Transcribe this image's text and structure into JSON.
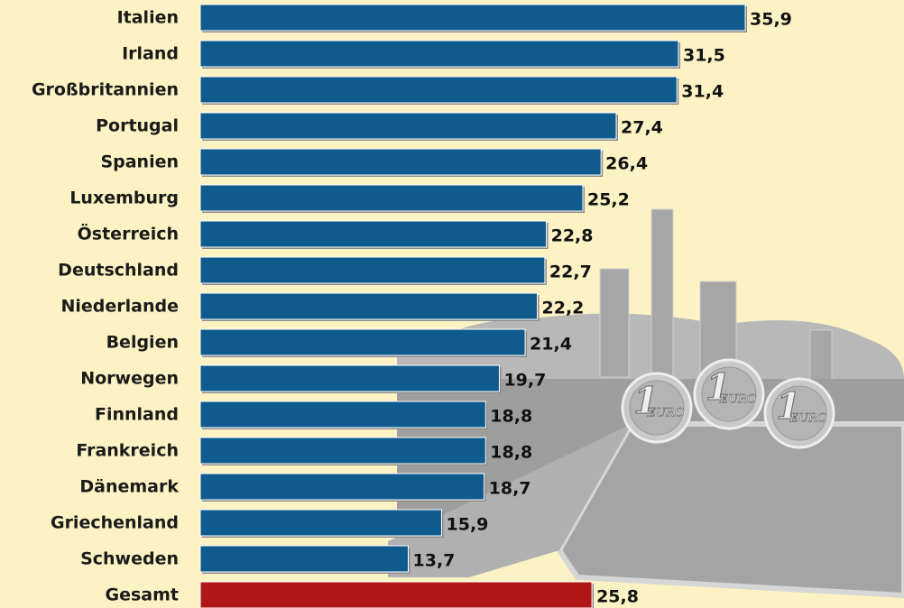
{
  "chart_data": {
    "type": "bar",
    "orientation": "horizontal",
    "categories": [
      "Italien",
      "Irland",
      "Großbritannien",
      "Portugal",
      "Spanien",
      "Luxemburg",
      "Österreich",
      "Deutschland",
      "Niederlande",
      "Belgien",
      "Norwegen",
      "Finnland",
      "Frankreich",
      "Dänemark",
      "Griechenland",
      "Schweden",
      "Gesamt"
    ],
    "values": [
      35.9,
      31.5,
      31.4,
      27.4,
      26.4,
      25.2,
      22.8,
      22.7,
      22.2,
      21.4,
      19.7,
      18.8,
      18.8,
      18.7,
      15.9,
      13.7,
      25.8
    ],
    "value_labels": [
      "35,9",
      "31,5",
      "31,4",
      "27,4",
      "26,4",
      "25,2",
      "22,8",
      "22,7",
      "22,2",
      "21,4",
      "19,7",
      "18,8",
      "18,8",
      "18,7",
      "15,9",
      "13,7",
      "25,8"
    ],
    "colors": [
      "#0f5b8e",
      "#0f5b8e",
      "#0f5b8e",
      "#0f5b8e",
      "#0f5b8e",
      "#0f5b8e",
      "#0f5b8e",
      "#0f5b8e",
      "#0f5b8e",
      "#0f5b8e",
      "#0f5b8e",
      "#0f5b8e",
      "#0f5b8e",
      "#0f5b8e",
      "#0f5b8e",
      "#0f5b8e",
      "#b01818"
    ],
    "xlim": [
      0,
      40
    ]
  },
  "illustration": {
    "coin_numeral": "1",
    "coin_text": "EURO"
  }
}
